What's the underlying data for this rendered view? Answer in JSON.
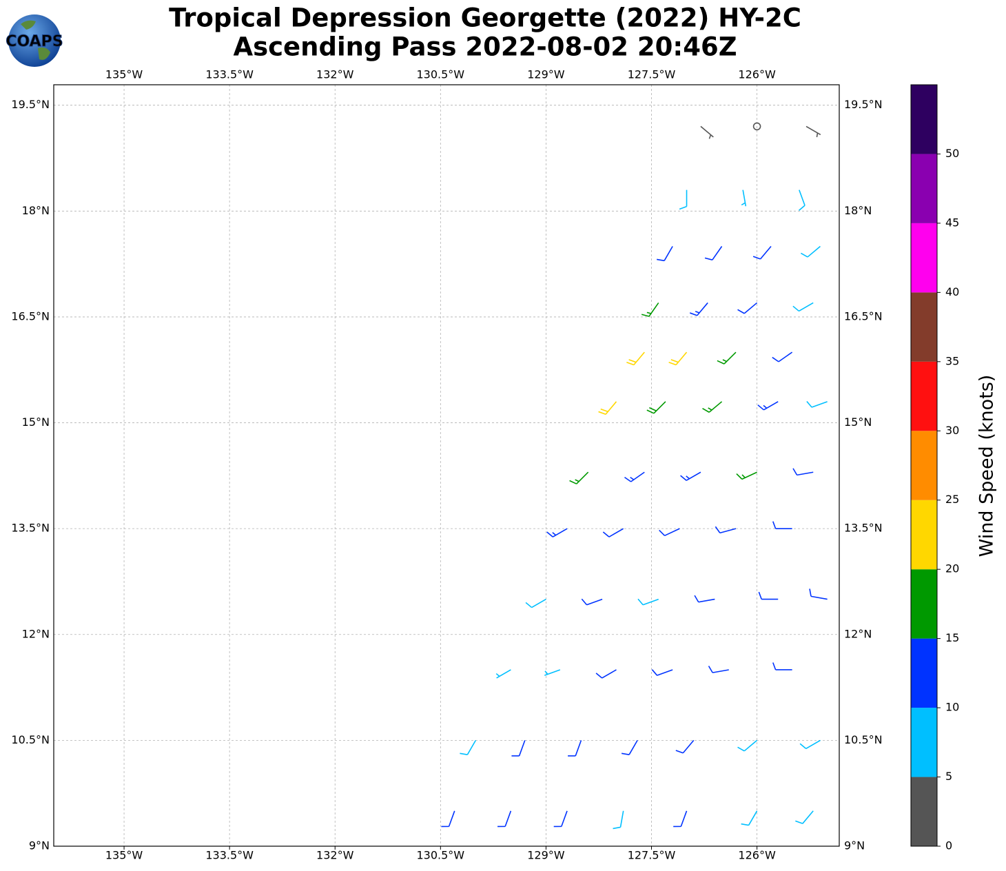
{
  "chart_data": {
    "type": "barbs",
    "title_lines": [
      "Tropical Depression Georgette (2022) HY-2C",
      "Ascending Pass 2022-08-02 20:46Z"
    ],
    "logo_text": "COAPS",
    "xlim": [
      -136.0,
      -124.83
    ],
    "ylim": [
      9,
      19.79
    ],
    "xticks": [
      {
        "value": -135,
        "label": "135°W"
      },
      {
        "value": -133.5,
        "label": "133.5°W"
      },
      {
        "value": -132,
        "label": "132°W"
      },
      {
        "value": -130.5,
        "label": "130.5°W"
      },
      {
        "value": -129,
        "label": "129°W"
      },
      {
        "value": -127.5,
        "label": "127.5°W"
      },
      {
        "value": -126,
        "label": "126°W"
      }
    ],
    "yticks": [
      {
        "value": 9,
        "label": "9°N"
      },
      {
        "value": 10.5,
        "label": "10.5°N"
      },
      {
        "value": 12,
        "label": "12°N"
      },
      {
        "value": 13.5,
        "label": "13.5°N"
      },
      {
        "value": 15,
        "label": "15°N"
      },
      {
        "value": 16.5,
        "label": "16.5°N"
      },
      {
        "value": 18,
        "label": "18°N"
      },
      {
        "value": 19.5,
        "label": "19.5°N"
      }
    ],
    "grid": true,
    "barbs": {
      "lon": [
        -130.3,
        -129.5,
        -128.7,
        -127.9,
        -127,
        -126,
        -125.2,
        -130,
        -129.3,
        -128.5,
        -127.7,
        -126.9,
        -126,
        -125.1,
        -129.5,
        -128.8,
        -128,
        -127.2,
        -126.4,
        -125.5,
        -129,
        -128.2,
        -127.4,
        -126.6,
        -125.7,
        -125,
        -128.7,
        -127.9,
        -127.1,
        -126.3,
        -125.5,
        -128.4,
        -127.6,
        -126.8,
        -126,
        -125.2,
        -128,
        -127.3,
        -126.5,
        -125.7,
        -125,
        -127.6,
        -127,
        -126.3,
        -125.5,
        -127.4,
        -126.7,
        -126,
        -125.2,
        -127.2,
        -126.5,
        -125.8,
        -125.1,
        -127,
        -126.2,
        -125.4,
        -126.8,
        -126,
        -125.3
      ],
      "lat": [
        9.5,
        9.5,
        9.5,
        9.5,
        9.5,
        9.5,
        9.5,
        10.5,
        10.5,
        10.5,
        10.5,
        10.5,
        10.5,
        10.5,
        11.5,
        11.5,
        11.5,
        11.5,
        11.5,
        11.5,
        12.5,
        12.5,
        12.5,
        12.5,
        12.5,
        12.5,
        13.5,
        13.5,
        13.5,
        13.5,
        13.5,
        14.3,
        14.3,
        14.3,
        14.3,
        14.3,
        15.3,
        15.3,
        15.3,
        15.3,
        15.3,
        16,
        16,
        16,
        16,
        16.7,
        16.7,
        16.7,
        16.7,
        17.5,
        17.5,
        17.5,
        17.5,
        18.3,
        18.3,
        18.3,
        19.2,
        19.2,
        19.2
      ],
      "speed": [
        12,
        12,
        12,
        8,
        10,
        8,
        8,
        8,
        12,
        12,
        12,
        10,
        8,
        8,
        7,
        7,
        12,
        12,
        12,
        10,
        8,
        12,
        8,
        12,
        12,
        10,
        14,
        12,
        12,
        12,
        12,
        17,
        13,
        14,
        17,
        12,
        22,
        18,
        17,
        13,
        8,
        22,
        22,
        17,
        12,
        17,
        13,
        12,
        8,
        10,
        12,
        12,
        8,
        8,
        7,
        8,
        3,
        2,
        3
      ],
      "direction": [
        200,
        200,
        200,
        190,
        200,
        210,
        220,
        210,
        200,
        200,
        210,
        220,
        230,
        240,
        240,
        250,
        240,
        250,
        260,
        270,
        240,
        250,
        250,
        260,
        270,
        280,
        240,
        240,
        245,
        255,
        270,
        225,
        235,
        240,
        245,
        260,
        220,
        225,
        230,
        240,
        250,
        220,
        220,
        225,
        235,
        215,
        220,
        230,
        240,
        210,
        215,
        220,
        230,
        180,
        170,
        160,
        130,
        100,
        120
      ]
    },
    "colorbar": {
      "label": "Wind Speed (knots)",
      "lim": [
        0,
        55
      ],
      "bounds": [
        0,
        5,
        10,
        15,
        20,
        25,
        30,
        35,
        40,
        45,
        50,
        55
      ],
      "colors": [
        "#555555",
        "#00bfff",
        "#0033ff",
        "#009900",
        "#ffd700",
        "#ff8c00",
        "#ff1010",
        "#833c2b",
        "#ff00ee",
        "#8a00b0",
        "#2e0060"
      ],
      "ticks": [
        0,
        5,
        10,
        15,
        20,
        25,
        30,
        35,
        40,
        45,
        50
      ]
    }
  }
}
